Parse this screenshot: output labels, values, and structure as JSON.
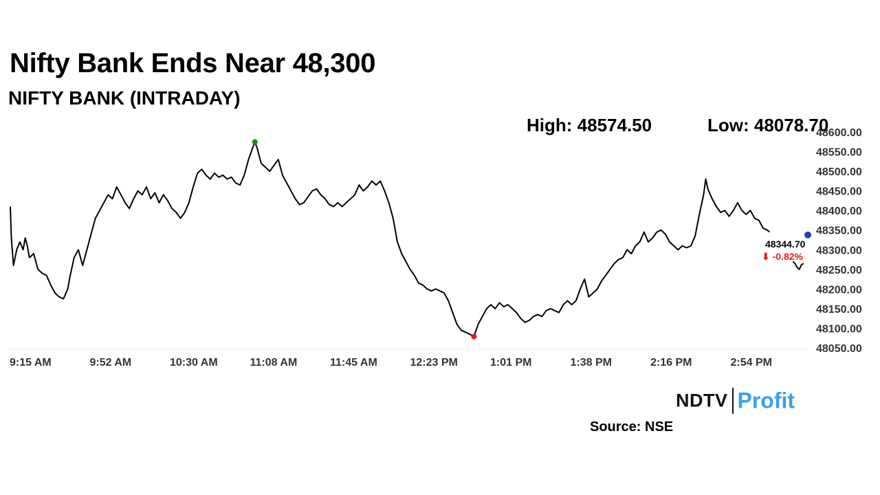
{
  "header": {
    "title": "Nifty Bank Ends Near 48,300",
    "subtitle": "NIFTY BANK (INTRADAY)",
    "high_label": "High: 48574.50",
    "low_label": "Low: 48078.70"
  },
  "footer": {
    "logo_left": "NDTV",
    "logo_right": "Profit",
    "source": "Source: NSE"
  },
  "colors": {
    "line": "#000000",
    "high_marker": "#1a8a1a",
    "low_marker": "#e41a1c",
    "last_marker": "#1f3fbf",
    "change_text": "#e41a1c",
    "logo_accent": "#3aa0e8"
  },
  "chart_data": {
    "type": "line",
    "x_ticks": [
      "9:15 AM",
      "9:52 AM",
      "10:30 AM",
      "11:08 AM",
      "11:45 AM",
      "12:23 PM",
      "1:01 PM",
      "1:38 PM",
      "2:16 PM",
      "2:54 PM"
    ],
    "y_ticks": [
      "48050.00",
      "48100.00",
      "48150.00",
      "48200.00",
      "48250.00",
      "48300.00",
      "48350.00",
      "48400.00",
      "48450.00",
      "48500.00",
      "48550.00",
      "48600.00"
    ],
    "ylim": [
      48050,
      48600
    ],
    "x_range_minutes": [
      0,
      375
    ],
    "grid": false,
    "x_axis_dotted": true,
    "high": {
      "time_min": 115,
      "value": 48574.5
    },
    "low": {
      "time_min": 218,
      "value": 48078.7
    },
    "last": {
      "value_label": "48344.70",
      "change_label": "⬇ -0.82%",
      "value": 48344.7
    },
    "series": [
      {
        "points": [
          [
            0,
            48410
          ],
          [
            0.5,
            48330
          ],
          [
            1.5,
            48260
          ],
          [
            3,
            48300
          ],
          [
            4.5,
            48320
          ],
          [
            6,
            48300
          ],
          [
            7,
            48330
          ],
          [
            8,
            48310
          ],
          [
            9,
            48280
          ],
          [
            11,
            48290
          ],
          [
            13,
            48250
          ],
          [
            15,
            48240
          ],
          [
            17,
            48235
          ],
          [
            19,
            48210
          ],
          [
            21,
            48190
          ],
          [
            23,
            48180
          ],
          [
            25,
            48175
          ],
          [
            27,
            48200
          ],
          [
            28,
            48230
          ],
          [
            30,
            48280
          ],
          [
            32,
            48300
          ],
          [
            34,
            48260
          ],
          [
            36,
            48300
          ],
          [
            38,
            48340
          ],
          [
            40,
            48380
          ],
          [
            42,
            48400
          ],
          [
            44,
            48420
          ],
          [
            46,
            48440
          ],
          [
            48,
            48430
          ],
          [
            50,
            48460
          ],
          [
            52,
            48440
          ],
          [
            54,
            48420
          ],
          [
            56,
            48405
          ],
          [
            58,
            48430
          ],
          [
            60,
            48450
          ],
          [
            62,
            48440
          ],
          [
            64,
            48460
          ],
          [
            66,
            48430
          ],
          [
            68,
            48445
          ],
          [
            70,
            48420
          ],
          [
            72,
            48440
          ],
          [
            74,
            48425
          ],
          [
            76,
            48405
          ],
          [
            78,
            48395
          ],
          [
            80,
            48380
          ],
          [
            82,
            48395
          ],
          [
            84,
            48420
          ],
          [
            86,
            48460
          ],
          [
            88,
            48495
          ],
          [
            90,
            48505
          ],
          [
            92,
            48490
          ],
          [
            94,
            48480
          ],
          [
            96,
            48495
          ],
          [
            98,
            48485
          ],
          [
            100,
            48490
          ],
          [
            102,
            48480
          ],
          [
            104,
            48485
          ],
          [
            106,
            48470
          ],
          [
            108,
            48465
          ],
          [
            110,
            48490
          ],
          [
            112,
            48530
          ],
          [
            114,
            48560
          ],
          [
            115,
            48574.5
          ],
          [
            116,
            48560
          ],
          [
            118,
            48520
          ],
          [
            120,
            48510
          ],
          [
            122,
            48500
          ],
          [
            124,
            48515
          ],
          [
            126,
            48530
          ],
          [
            128,
            48490
          ],
          [
            130,
            48470
          ],
          [
            132,
            48450
          ],
          [
            134,
            48430
          ],
          [
            136,
            48415
          ],
          [
            138,
            48420
          ],
          [
            140,
            48435
          ],
          [
            142,
            48450
          ],
          [
            144,
            48455
          ],
          [
            146,
            48440
          ],
          [
            148,
            48430
          ],
          [
            150,
            48415
          ],
          [
            152,
            48410
          ],
          [
            154,
            48420
          ],
          [
            156,
            48410
          ],
          [
            158,
            48420
          ],
          [
            160,
            48430
          ],
          [
            162,
            48440
          ],
          [
            164,
            48465
          ],
          [
            166,
            48450
          ],
          [
            168,
            48460
          ],
          [
            170,
            48475
          ],
          [
            172,
            48465
          ],
          [
            174,
            48475
          ],
          [
            176,
            48450
          ],
          [
            178,
            48420
          ],
          [
            180,
            48380
          ],
          [
            182,
            48320
          ],
          [
            184,
            48290
          ],
          [
            186,
            48270
          ],
          [
            188,
            48250
          ],
          [
            190,
            48235
          ],
          [
            192,
            48215
          ],
          [
            194,
            48210
          ],
          [
            196,
            48200
          ],
          [
            198,
            48195
          ],
          [
            200,
            48200
          ],
          [
            202,
            48195
          ],
          [
            204,
            48190
          ],
          [
            206,
            48170
          ],
          [
            208,
            48140
          ],
          [
            210,
            48110
          ],
          [
            212,
            48095
          ],
          [
            214,
            48090
          ],
          [
            216,
            48085
          ],
          [
            218,
            48078.7
          ],
          [
            220,
            48110
          ],
          [
            222,
            48130
          ],
          [
            224,
            48150
          ],
          [
            226,
            48160
          ],
          [
            228,
            48150
          ],
          [
            230,
            48165
          ],
          [
            232,
            48155
          ],
          [
            234,
            48160
          ],
          [
            236,
            48150
          ],
          [
            238,
            48140
          ],
          [
            240,
            48125
          ],
          [
            242,
            48115
          ],
          [
            244,
            48120
          ],
          [
            246,
            48130
          ],
          [
            248,
            48135
          ],
          [
            250,
            48130
          ],
          [
            252,
            48145
          ],
          [
            254,
            48150
          ],
          [
            256,
            48145
          ],
          [
            258,
            48140
          ],
          [
            260,
            48160
          ],
          [
            262,
            48170
          ],
          [
            264,
            48160
          ],
          [
            266,
            48170
          ],
          [
            268,
            48200
          ],
          [
            270,
            48225
          ],
          [
            272,
            48180
          ],
          [
            274,
            48190
          ],
          [
            276,
            48200
          ],
          [
            278,
            48220
          ],
          [
            280,
            48235
          ],
          [
            282,
            48250
          ],
          [
            284,
            48265
          ],
          [
            286,
            48275
          ],
          [
            288,
            48280
          ],
          [
            290,
            48300
          ],
          [
            292,
            48290
          ],
          [
            294,
            48310
          ],
          [
            296,
            48320
          ],
          [
            298,
            48345
          ],
          [
            300,
            48320
          ],
          [
            302,
            48330
          ],
          [
            304,
            48345
          ],
          [
            306,
            48350
          ],
          [
            308,
            48340
          ],
          [
            310,
            48320
          ],
          [
            312,
            48310
          ],
          [
            314,
            48300
          ],
          [
            316,
            48310
          ],
          [
            318,
            48305
          ],
          [
            320,
            48310
          ],
          [
            322,
            48335
          ],
          [
            324,
            48390
          ],
          [
            326,
            48440
          ],
          [
            327,
            48480
          ],
          [
            328,
            48455
          ],
          [
            330,
            48430
          ],
          [
            332,
            48410
          ],
          [
            334,
            48395
          ],
          [
            336,
            48400
          ],
          [
            338,
            48385
          ],
          [
            340,
            48400
          ],
          [
            342,
            48420
          ],
          [
            344,
            48400
          ],
          [
            346,
            48390
          ],
          [
            348,
            48400
          ],
          [
            350,
            48380
          ],
          [
            352,
            48375
          ],
          [
            354,
            48355
          ],
          [
            356,
            48350
          ],
          [
            357,
            48345
          ]
        ]
      },
      {
        "points": [
          [
            368,
            48270
          ],
          [
            369,
            48265
          ],
          [
            370,
            48255
          ],
          [
            371,
            48250
          ],
          [
            372,
            48262
          ],
          [
            373,
            48265
          ]
        ]
      }
    ]
  }
}
